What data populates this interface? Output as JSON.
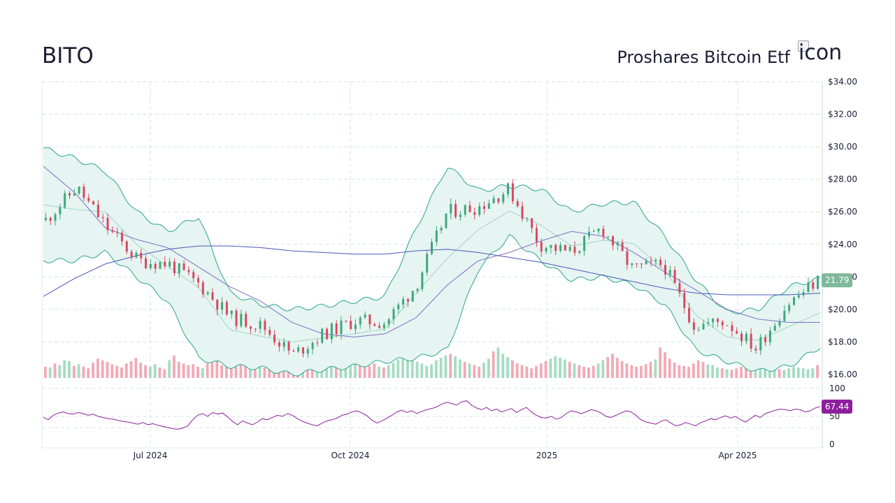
{
  "header": {
    "ticker": "BITO",
    "company": "Proshares Bitcoin Etf",
    "logo_alt": "icon"
  },
  "colors": {
    "up": "#3fa77a",
    "down": "#d64a5e",
    "up_volume": "#a6dcc3",
    "down_volume": "#f2aab6",
    "band_fill": "#e6f4f2",
    "band_line": "#2ba58c",
    "sma_long": "#4a55b8",
    "sma_mid": "#7b6fc4",
    "rsi": "#8e1f9c",
    "grid": "#d5e6e3",
    "price_badge": "#7fb89a",
    "rsi_badge": "#8e1f9c"
  },
  "chart_data": [
    {
      "type": "candlestick",
      "title": "BITO",
      "subtitle": "Proshares Bitcoin Etf",
      "ylim": [
        16,
        34
      ],
      "yticks": [
        "$34.00",
        "$32.00",
        "$30.00",
        "$28.00",
        "$26.00",
        "$24.00",
        "$22.00",
        "$20.00",
        "$18.00",
        "$16.00"
      ],
      "ytick_values": [
        34,
        32,
        30,
        28,
        26,
        24,
        22,
        20,
        18,
        16
      ],
      "xticks": [
        "Jul 2024",
        "Oct 2024",
        "2025",
        "Apr 2025"
      ],
      "last_price": "21.79",
      "series": [
        {
          "name": "close",
          "x": [
            "2024-05-20",
            "2024-06-03",
            "2024-06-17",
            "2024-07-01",
            "2024-07-15",
            "2024-08-01",
            "2024-08-15",
            "2024-09-01",
            "2024-09-15",
            "2024-10-01",
            "2024-10-15",
            "2024-11-01",
            "2024-11-08",
            "2024-11-20",
            "2024-12-01",
            "2024-12-15",
            "2025-01-01",
            "2025-01-20",
            "2025-02-01",
            "2025-02-20",
            "2025-03-01",
            "2025-03-15",
            "2025-04-01",
            "2025-04-15",
            "2025-05-01",
            "2025-05-15"
          ],
          "values": [
            25.5,
            27.5,
            25.0,
            23.0,
            22.8,
            21.5,
            19.5,
            19.0,
            17.2,
            18.5,
            19.3,
            19.2,
            21.5,
            26.0,
            26.3,
            27.4,
            24.0,
            23.5,
            25.0,
            22.5,
            22.8,
            19.0,
            19.3,
            17.6,
            20.3,
            21.79
          ]
        },
        {
          "name": "upper_band",
          "values": [
            29.9,
            29.3,
            28.5,
            26.0,
            24.8,
            25.7,
            21.0,
            20.3,
            20.0,
            20.2,
            20.5,
            20.8,
            25.0,
            28.8,
            27.3,
            27.6,
            27.4,
            26.0,
            26.5,
            26.6,
            24.5,
            21.8,
            19.8,
            20.0,
            21.4,
            21.9
          ]
        },
        {
          "name": "lower_band",
          "values": [
            23.0,
            23.0,
            23.5,
            22.0,
            20.5,
            17.0,
            16.5,
            16.4,
            16.0,
            16.3,
            16.5,
            16.8,
            17.0,
            17.5,
            22.5,
            24.5,
            23.0,
            21.8,
            22.0,
            21.5,
            20.3,
            17.5,
            16.8,
            16.2,
            16.5,
            17.7
          ]
        },
        {
          "name": "sma_200",
          "values": [
            20.8,
            21.9,
            22.8,
            23.3,
            23.7,
            23.9,
            23.9,
            23.8,
            23.6,
            23.5,
            23.4,
            23.4,
            23.6,
            23.7,
            23.5,
            23.2,
            22.9,
            22.5,
            22.1,
            21.7,
            21.3,
            21.0,
            20.9,
            20.9,
            20.9,
            21.0
          ]
        },
        {
          "name": "sma_50",
          "values": [
            28.8,
            27.2,
            25.0,
            24.3,
            23.8,
            22.6,
            21.4,
            20.5,
            19.2,
            18.5,
            18.3,
            18.5,
            19.5,
            21.5,
            23.0,
            23.5,
            24.2,
            24.8,
            24.5,
            23.5,
            22.3,
            21.2,
            20.0,
            19.4,
            19.2,
            19.2
          ]
        }
      ]
    },
    {
      "type": "bar",
      "name": "volume",
      "values": [
        14,
        13,
        18,
        16,
        22,
        21,
        15,
        17,
        14,
        12,
        19,
        24,
        22,
        20,
        17,
        15,
        13,
        18,
        21,
        25,
        19,
        16,
        14,
        17,
        13,
        11,
        22,
        28,
        20,
        18,
        16,
        17,
        14,
        12,
        18,
        26,
        21,
        16,
        19,
        17,
        15,
        22,
        30,
        24,
        19,
        17,
        13,
        15,
        18,
        16,
        14,
        20,
        23,
        18,
        16,
        14,
        19,
        22,
        26,
        21,
        16,
        14,
        17,
        19,
        22,
        24,
        20,
        17,
        15,
        18,
        14,
        13,
        16,
        19,
        23,
        27,
        31,
        24,
        20,
        18,
        15,
        17,
        22,
        25,
        28,
        30,
        27,
        23,
        20,
        18,
        16,
        14,
        19,
        24,
        33,
        38,
        30,
        26,
        22,
        18,
        16,
        14,
        12,
        15,
        18,
        21,
        24,
        27,
        25,
        23,
        20,
        18,
        16,
        14,
        13,
        15,
        18,
        22,
        26,
        30,
        25,
        21,
        18,
        16,
        14,
        15,
        17,
        20,
        23,
        38,
        32,
        24,
        19,
        16,
        15,
        14,
        18,
        22,
        20,
        17,
        16,
        13,
        12,
        11,
        10,
        12,
        14,
        16,
        18,
        20,
        22,
        16,
        14,
        12,
        11,
        10,
        12,
        14,
        13,
        12,
        11,
        12,
        16
      ]
    },
    {
      "type": "line",
      "name": "RSI",
      "ylim": [
        0,
        100
      ],
      "yticks": [
        "100",
        "50",
        "0"
      ],
      "ytick_values": [
        100,
        50,
        0
      ],
      "last_value": "67.44",
      "values": [
        48,
        44,
        52,
        56,
        58,
        55,
        54,
        57,
        55,
        52,
        54,
        50,
        48,
        46,
        45,
        43,
        41,
        40,
        38,
        36,
        39,
        35,
        37,
        34,
        32,
        30,
        28,
        27,
        29,
        33,
        44,
        52,
        55,
        50,
        57,
        54,
        56,
        49,
        41,
        35,
        42,
        38,
        35,
        40,
        46,
        44,
        48,
        52,
        50,
        55,
        52,
        46,
        41,
        38,
        35,
        33,
        38,
        42,
        44,
        47,
        52,
        54,
        58,
        60,
        56,
        51,
        43,
        38,
        42,
        47,
        52,
        58,
        61,
        57,
        60,
        55,
        59,
        62,
        64,
        67,
        72,
        75,
        73,
        70,
        76,
        78,
        70,
        65,
        62,
        66,
        60,
        63,
        58,
        61,
        64,
        57,
        62,
        66,
        58,
        52,
        48,
        47,
        50,
        45,
        48,
        55,
        60,
        58,
        55,
        58,
        62,
        60,
        56,
        50,
        48,
        52,
        56,
        60,
        58,
        52,
        44,
        40,
        38,
        36,
        41,
        44,
        38,
        33,
        35,
        39,
        36,
        33,
        39,
        42,
        46,
        44,
        48,
        51,
        47,
        50,
        44,
        40,
        46,
        52,
        48,
        55,
        58,
        61,
        63,
        62,
        60,
        63,
        62,
        58,
        60,
        65,
        67.44
      ]
    }
  ]
}
